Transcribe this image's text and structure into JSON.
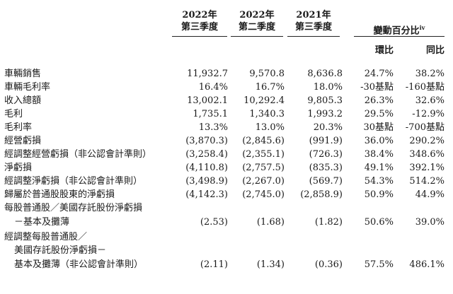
{
  "header": {
    "col1_year": "2022年",
    "col1_q": "第三季度",
    "col2_year": "2022年",
    "col2_q": "第二季度",
    "col3_year": "2021年",
    "col3_q": "第三季度",
    "change": "變動百分比",
    "change_note": "iv",
    "qoq": "環比",
    "yoy": "同比"
  },
  "rows": [
    {
      "label": "車輛銷售",
      "v1": "11,932.7",
      "v2": "9,570.8",
      "v3": "8,636.8",
      "qoq": "24.7%",
      "yoy": "38.2%"
    },
    {
      "label": "車輛毛利率",
      "v1": "16.4%",
      "v2": "16.7%",
      "v3": "18.0%",
      "qoq": "-30基點",
      "yoy": "-160基點"
    },
    {
      "label": "收入總額",
      "v1": "13,002.1",
      "v2": "10,292.4",
      "v3": "9,805.3",
      "qoq": "26.3%",
      "yoy": "32.6%"
    },
    {
      "label": "毛利",
      "v1": "1,735.1",
      "v2": "1,340.3",
      "v3": "1,993.2",
      "qoq": "29.5%",
      "yoy": "-12.9%"
    },
    {
      "label": "毛利率",
      "v1": "13.3%",
      "v2": "13.0%",
      "v3": "20.3%",
      "qoq": "30基點",
      "yoy": "-700基點"
    },
    {
      "label": "經營虧損",
      "v1": "(3,870.3)",
      "v2": "(2,845.6)",
      "v3": "(991.9)",
      "qoq": "36.0%",
      "yoy": "290.2%"
    },
    {
      "label": "經調整經營虧損（非公認會計準則）",
      "v1": "(3,258.4)",
      "v2": "(2,355.1)",
      "v3": "(726.3)",
      "qoq": "38.4%",
      "yoy": "348.6%"
    },
    {
      "label": "淨虧損",
      "v1": "(4,110.8)",
      "v2": "(2,757.5)",
      "v3": "(835.3)",
      "qoq": "49.1%",
      "yoy": "392.1%"
    },
    {
      "label": "經調整淨虧損（非公認會計準則）",
      "v1": "(3,498.9)",
      "v2": "(2,267.0)",
      "v3": "(569.7)",
      "qoq": "54.3%",
      "yoy": "514.2%"
    },
    {
      "label": "歸屬於普通股股東的淨虧損",
      "v1": "(4,142.3)",
      "v2": "(2,745.0)",
      "v3": "(2,858.9)",
      "qoq": "50.9%",
      "yoy": "44.9%"
    },
    {
      "label": "每股普通股／美國存託股份淨虧損",
      "v1": "",
      "v2": "",
      "v3": "",
      "qoq": "",
      "yoy": ""
    },
    {
      "label": "－基本及攤薄",
      "v1": "(2.53)",
      "v2": "(1.68)",
      "v3": "(1.82)",
      "qoq": "50.6%",
      "yoy": "39.0%"
    },
    {
      "label": "經調整每股普通股／",
      "v1": "",
      "v2": "",
      "v3": "",
      "qoq": "",
      "yoy": ""
    },
    {
      "label": "美國存託股份淨虧損－",
      "v1": "",
      "v2": "",
      "v3": "",
      "qoq": "",
      "yoy": ""
    },
    {
      "label": "基本及攤薄（非公認會計準則）",
      "v1": "(2.11)",
      "v2": "(1.34)",
      "v3": "(0.36)",
      "qoq": "57.5%",
      "yoy": "486.1%"
    }
  ]
}
